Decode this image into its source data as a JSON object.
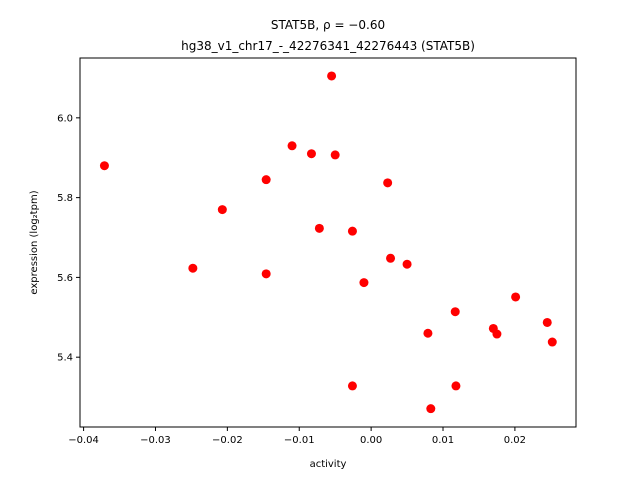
{
  "chart_data": {
    "type": "scatter",
    "title_line1": "STAT5B, ρ = −0.60",
    "title_line2": "hg38_v1_chr17_-_42276341_42276443 (STAT5B)",
    "xlabel": "activity",
    "ylabel": "expression (log₂tpm)",
    "xlim": [
      -0.0405,
      0.0285
    ],
    "ylim": [
      5.225,
      6.15
    ],
    "xticks": [
      -0.04,
      -0.03,
      -0.02,
      -0.01,
      0.0,
      0.01,
      0.02
    ],
    "xtick_labels": [
      "−0.04",
      "−0.03",
      "−0.02",
      "−0.01",
      "0.00",
      "0.01",
      "0.02"
    ],
    "yticks": [
      5.4,
      5.6,
      5.8,
      6.0
    ],
    "ytick_labels": [
      "5.4",
      "5.6",
      "5.8",
      "6.0"
    ],
    "grid": false,
    "marker_color": "#ff0000",
    "points": [
      {
        "x": -0.0371,
        "y": 5.88
      },
      {
        "x": -0.0248,
        "y": 5.623
      },
      {
        "x": -0.0207,
        "y": 5.77
      },
      {
        "x": -0.0146,
        "y": 5.845
      },
      {
        "x": -0.0146,
        "y": 5.609
      },
      {
        "x": -0.011,
        "y": 5.93
      },
      {
        "x": -0.0083,
        "y": 5.91
      },
      {
        "x": -0.0072,
        "y": 5.723
      },
      {
        "x": -0.0055,
        "y": 6.105
      },
      {
        "x": -0.005,
        "y": 5.907
      },
      {
        "x": -0.0026,
        "y": 5.716
      },
      {
        "x": -0.0026,
        "y": 5.328
      },
      {
        "x": -0.001,
        "y": 5.587
      },
      {
        "x": 0.0023,
        "y": 5.837
      },
      {
        "x": 0.0027,
        "y": 5.648
      },
      {
        "x": 0.005,
        "y": 5.633
      },
      {
        "x": 0.0079,
        "y": 5.46
      },
      {
        "x": 0.0083,
        "y": 5.271
      },
      {
        "x": 0.0117,
        "y": 5.514
      },
      {
        "x": 0.0118,
        "y": 5.328
      },
      {
        "x": 0.017,
        "y": 5.472
      },
      {
        "x": 0.0175,
        "y": 5.458
      },
      {
        "x": 0.0201,
        "y": 5.551
      },
      {
        "x": 0.0245,
        "y": 5.487
      },
      {
        "x": 0.0252,
        "y": 5.438
      }
    ]
  }
}
